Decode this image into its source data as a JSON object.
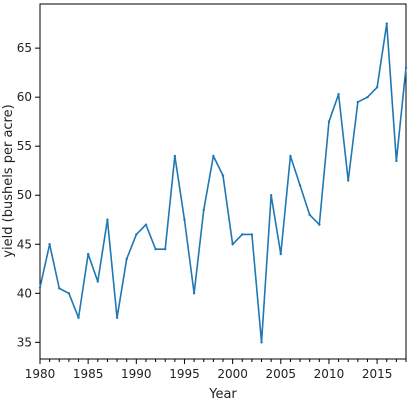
{
  "chart_data": {
    "type": "line",
    "title": "",
    "xlabel": "Year",
    "ylabel": "yield (bushels per acre)",
    "xlim": [
      1980,
      2018
    ],
    "ylim": [
      33.3,
      69.5
    ],
    "xticks": [
      1980,
      1985,
      1990,
      1995,
      2000,
      2005,
      2010,
      2015
    ],
    "yticks": [
      35,
      40,
      45,
      50,
      55,
      60,
      65
    ],
    "grid": false,
    "line_color": "#1f77b4",
    "series": [
      {
        "x": [
          1980,
          1981,
          1982,
          1983,
          1984,
          1985,
          1986,
          1987,
          1988,
          1989,
          1990,
          1991,
          1992,
          1993,
          1994,
          1995,
          1996,
          1997,
          1998,
          1999,
          2000,
          2001,
          2002,
          2003,
          2004,
          2005,
          2006,
          2007,
          2008,
          2009,
          2010,
          2011,
          2012,
          2013,
          2014,
          2015,
          2016,
          2017,
          2018
        ],
        "y": [
          40.6,
          45.0,
          40.5,
          40.0,
          37.5,
          44.0,
          41.2,
          47.5,
          37.5,
          43.5,
          46.0,
          47.0,
          44.5,
          44.5,
          54.0,
          47.5,
          40.0,
          48.5,
          54.0,
          52.0,
          45.0,
          46.0,
          46.0,
          35.0,
          50.0,
          44.0,
          54.0,
          51.0,
          48.0,
          47.0,
          57.5,
          60.3,
          51.5,
          59.5,
          60.0,
          61.0,
          67.5,
          53.5,
          63.0
        ]
      }
    ]
  }
}
